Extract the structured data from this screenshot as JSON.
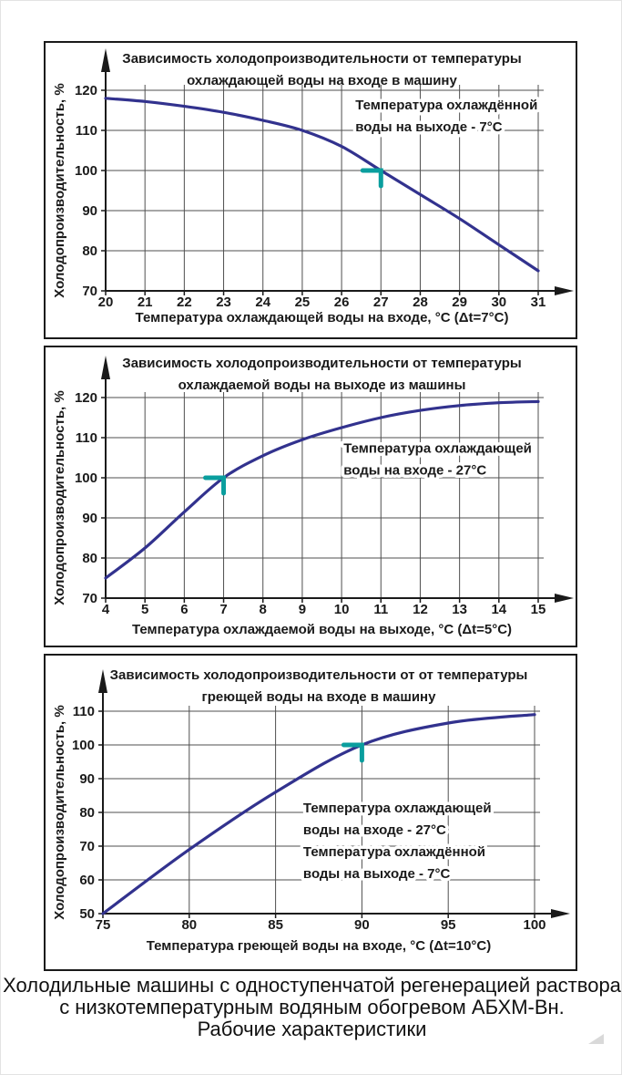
{
  "page": {
    "caption_lines": [
      "Холодильные машины с одноступенчатой регенерацией раствора",
      "с низкотемпературным водяным обогревом АБХМ-Вн.",
      "Рабочие характеристики"
    ]
  },
  "colors": {
    "curve": "#32328e",
    "marker": "#0a9e9e",
    "grid": "#4f4f4f",
    "axis": "#1a1a1a",
    "text": "#1a1a1a",
    "frame": "#1a1a1a"
  },
  "chart_data": [
    {
      "type": "line",
      "title_lines": [
        "Зависимость холодопроизводительности от температуры",
        "охлаждающей воды на входе в машину"
      ],
      "xlabel": "Температура охлаждающей воды на входе, °C (Δt=7°C)",
      "ylabel": "Холодопроизводительность, %",
      "xlim": [
        20,
        31
      ],
      "ylim": [
        70,
        120
      ],
      "x_ticks": [
        20,
        21,
        22,
        23,
        24,
        25,
        26,
        27,
        28,
        29,
        30,
        31
      ],
      "y_ticks": [
        70,
        80,
        90,
        100,
        110,
        120
      ],
      "grid": true,
      "legend": "none",
      "series": [
        {
          "name": "холодопроизводительность",
          "x": [
            20,
            21,
            22,
            23,
            24,
            25,
            26,
            27,
            28,
            29,
            30,
            31
          ],
          "y": [
            118,
            117.2,
            116,
            114.5,
            112.5,
            110,
            106,
            100,
            94,
            88,
            81.5,
            75
          ]
        }
      ],
      "marker_point": {
        "x": 27,
        "y": 100
      },
      "annotations": [
        {
          "x": 26.35,
          "y": 115.2,
          "lines": [
            "Температура охлаждённой",
            "воды на выходе - 7°C"
          ]
        }
      ]
    },
    {
      "type": "line",
      "title_lines": [
        "Зависимость холодопроизводительности от температуры",
        "охлаждаемой воды на выходе из машины"
      ],
      "xlabel": "Температура охлаждаемой воды на выходе, °C (Δt=5°C)",
      "ylabel": "Холодопроизводительность, %",
      "xlim": [
        4,
        15
      ],
      "ylim": [
        70,
        120
      ],
      "x_ticks": [
        4,
        5,
        6,
        7,
        8,
        9,
        10,
        11,
        12,
        13,
        14,
        15
      ],
      "y_ticks": [
        70,
        80,
        90,
        100,
        110,
        120
      ],
      "grid": true,
      "legend": "none",
      "series": [
        {
          "name": "холодопроизводительность",
          "x": [
            4,
            5,
            6,
            7,
            8,
            9,
            10,
            11,
            12,
            13,
            14,
            15
          ],
          "y": [
            75,
            82.5,
            91.5,
            100,
            105.5,
            109.5,
            112.5,
            115,
            116.8,
            118,
            118.7,
            119
          ]
        }
      ],
      "marker_point": {
        "x": 7,
        "y": 100
      },
      "annotations": [
        {
          "x": 10.05,
          "y": 106.3,
          "lines": [
            "Температура охлаждающей",
            "воды на входе - 27°C"
          ]
        }
      ]
    },
    {
      "type": "line",
      "title_lines": [
        "Зависимость холодопроизводительности от от температуры",
        "греющей воды на входе в машину"
      ],
      "xlabel": "Температура греющей воды на входе, °C (Δt=10°C)",
      "ylabel": "Холодопроизводительность, %",
      "xlim": [
        75,
        100
      ],
      "ylim": [
        50,
        110
      ],
      "x_ticks": [
        75,
        80,
        85,
        90,
        95,
        100
      ],
      "y_ticks": [
        50,
        60,
        70,
        80,
        90,
        100,
        110
      ],
      "grid": true,
      "legend": "none",
      "series": [
        {
          "name": "холодопроизводительность",
          "x": [
            75,
            80,
            85,
            90,
            95,
            100
          ],
          "y": [
            50,
            69,
            86,
            100,
            106.5,
            109
          ]
        }
      ],
      "marker_point": {
        "x": 90,
        "y": 100
      },
      "annotations": [
        {
          "x": 86.6,
          "y": 80,
          "lines": [
            "Температура охлаждающей",
            "воды на входе - 27°C"
          ]
        },
        {
          "x": 86.6,
          "y": 67,
          "lines": [
            "Температура охлаждённой",
            "воды на выходе - 7°C"
          ]
        }
      ]
    }
  ]
}
